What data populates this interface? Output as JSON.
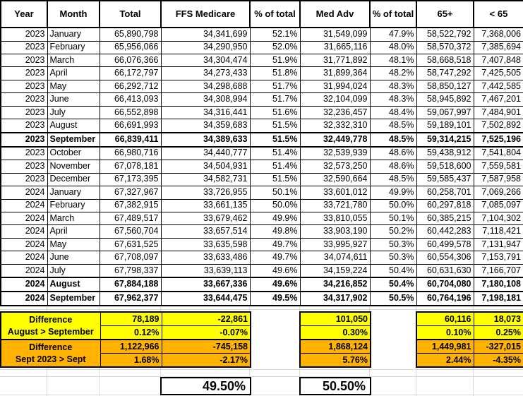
{
  "colors": {
    "highlight_yellow": "#FFFF00",
    "highlight_orange": "#FFB300",
    "border_black": "#000000",
    "gridline_gray": "#D9D9D9"
  },
  "table": {
    "columns": [
      "Year",
      "Month",
      "Total",
      "FFS Medicare",
      "% of total",
      "Med Adv",
      "% of total",
      "65+",
      "< 65"
    ],
    "bold_rows": [
      8,
      19,
      20
    ],
    "rows": [
      [
        "2023",
        "January",
        "65,890,798",
        "34,341,699",
        "52.1%",
        "31,549,099",
        "47.9%",
        "58,522,792",
        "7,368,006"
      ],
      [
        "2023",
        "February",
        "65,956,066",
        "34,290,950",
        "52.0%",
        "31,665,116",
        "48.0%",
        "58,570,372",
        "7,385,694"
      ],
      [
        "2023",
        "March",
        "66,076,366",
        "34,304,474",
        "51.9%",
        "31,771,892",
        "48.1%",
        "58,668,518",
        "7,407,848"
      ],
      [
        "2023",
        "April",
        "66,172,797",
        "34,273,433",
        "51.8%",
        "31,899,364",
        "48.2%",
        "58,747,292",
        "7,425,505"
      ],
      [
        "2023",
        "May",
        "66,292,712",
        "34,298,688",
        "51.7%",
        "31,994,024",
        "48.3%",
        "58,850,127",
        "7,442,585"
      ],
      [
        "2023",
        "June",
        "66,413,093",
        "34,308,994",
        "51.7%",
        "32,104,099",
        "48.3%",
        "58,945,892",
        "7,467,201"
      ],
      [
        "2023",
        "July",
        "66,552,898",
        "34,316,441",
        "51.6%",
        "32,236,457",
        "48.4%",
        "59,067,997",
        "7,484,901"
      ],
      [
        "2023",
        "August",
        "66,691,993",
        "34,359,683",
        "51.5%",
        "32,332,310",
        "48.5%",
        "59,189,101",
        "7,502,892"
      ],
      [
        "2023",
        "September",
        "66,839,411",
        "34,389,633",
        "51.5%",
        "32,449,778",
        "48.5%",
        "59,314,215",
        "7,525,196"
      ],
      [
        "2023",
        "October",
        "66,980,716",
        "34,440,777",
        "51.4%",
        "32,539,939",
        "48.6%",
        "59,438,912",
        "7,541,804"
      ],
      [
        "2023",
        "November",
        "67,078,181",
        "34,504,931",
        "51.4%",
        "32,573,250",
        "48.6%",
        "59,518,600",
        "7,559,581"
      ],
      [
        "2023",
        "December",
        "67,173,395",
        "34,582,731",
        "51.5%",
        "32,590,664",
        "48.5%",
        "59,585,437",
        "7,587,958"
      ],
      [
        "2024",
        "January",
        "67,327,967",
        "33,726,955",
        "50.1%",
        "33,601,012",
        "49.9%",
        "60,258,701",
        "7,069,266"
      ],
      [
        "2024",
        "February",
        "67,382,915",
        "33,661,135",
        "50.0%",
        "33,721,780",
        "50.0%",
        "60,297,818",
        "7,085,097"
      ],
      [
        "2024",
        "March",
        "67,489,517",
        "33,679,462",
        "49.9%",
        "33,810,055",
        "50.1%",
        "60,385,215",
        "7,104,302"
      ],
      [
        "2024",
        "April",
        "67,560,704",
        "33,657,514",
        "49.8%",
        "33,903,190",
        "50.2%",
        "60,442,283",
        "7,118,421"
      ],
      [
        "2024",
        "May",
        "67,631,525",
        "33,635,598",
        "49.7%",
        "33,995,927",
        "50.3%",
        "60,499,578",
        "7,131,947"
      ],
      [
        "2024",
        "June",
        "67,708,097",
        "33,633,486",
        "49.7%",
        "34,074,611",
        "50.3%",
        "60,554,306",
        "7,153,791"
      ],
      [
        "2024",
        "July",
        "67,798,337",
        "33,639,113",
        "49.6%",
        "34,159,224",
        "50.4%",
        "60,631,630",
        "7,166,707"
      ],
      [
        "2024",
        "August",
        "67,884,188",
        "33,667,336",
        "49.6%",
        "34,216,852",
        "50.4%",
        "60,704,080",
        "7,180,108"
      ],
      [
        "2024",
        "September",
        "67,962,377",
        "33,644,475",
        "49.5%",
        "34,317,902",
        "50.5%",
        "60,764,196",
        "7,198,181"
      ]
    ]
  },
  "summary": {
    "diff1_label_line1": "Difference",
    "diff1_label_line2": "August > September",
    "diff2_label_line1": "Difference",
    "diff2_label_line2": "Sept 2023 > Sept",
    "total": [
      "78,189",
      "0.12%",
      "1,122,966",
      "1.68%"
    ],
    "ffs": [
      "-22,861",
      "-0.07%",
      "-745,158",
      "-2.17%"
    ],
    "medadv": [
      "101,050",
      "0.30%",
      "1,868,124",
      "5.76%"
    ],
    "o65": [
      "60,116",
      "0.10%",
      "1,449,981",
      "2.44%"
    ],
    "u65": [
      "18,073",
      "0.25%",
      "-327,015",
      "-4.35%"
    ]
  },
  "footer": {
    "ffs_pct": "49.50%",
    "medadv_pct": "50.50%"
  }
}
